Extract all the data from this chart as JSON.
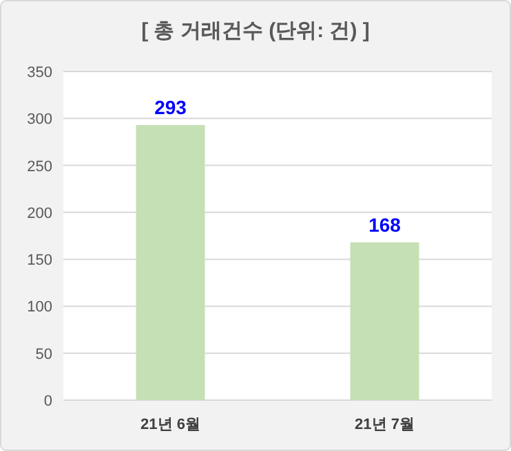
{
  "chart_data": {
    "type": "bar",
    "title": "[ 총 거래건수 (단위: 건) ]",
    "categories": [
      "21년 6월",
      "21년 7월"
    ],
    "values": [
      293,
      168
    ],
    "color": "#c5e0b4",
    "ylim": [
      0,
      350
    ],
    "yticks": [
      0,
      50,
      100,
      150,
      200,
      250,
      300,
      350
    ],
    "grid": "y",
    "data_labels": true
  }
}
